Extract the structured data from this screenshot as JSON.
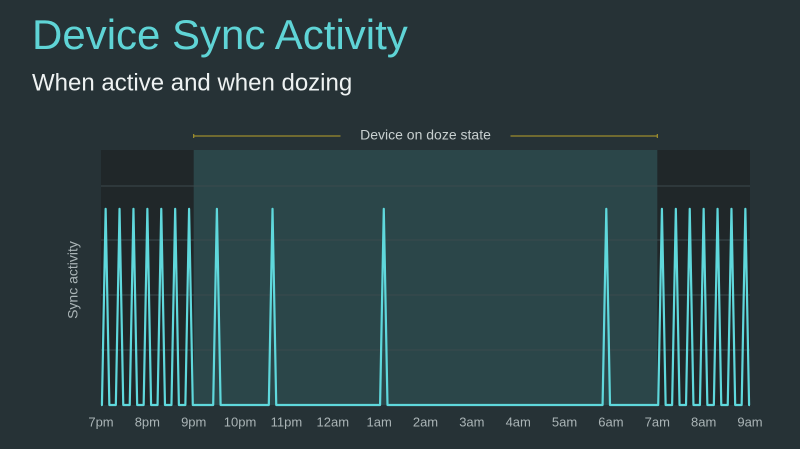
{
  "chart_data": {
    "type": "line",
    "title": "Device Sync Activity",
    "subtitle": "When active and when dozing",
    "y_label": "Sync activity",
    "annotation": {
      "text": "Device on doze state",
      "x_range": [
        2,
        12
      ],
      "color": "#b9a32b",
      "fill": "#2b4649"
    },
    "outside_fill": "#202729",
    "color": "#5fd8dc",
    "xlim": [
      0,
      14
    ],
    "ylim": [
      0,
      1.3
    ],
    "xticks": [
      {
        "value": 0,
        "label": "7pm"
      },
      {
        "value": 1,
        "label": "8pm"
      },
      {
        "value": 2,
        "label": "9pm"
      },
      {
        "value": 3,
        "label": "10pm"
      },
      {
        "value": 4,
        "label": "11pm"
      },
      {
        "value": 5,
        "label": "12am"
      },
      {
        "value": 6,
        "label": "1am"
      },
      {
        "value": 7,
        "label": "2am"
      },
      {
        "value": 8,
        "label": "3am"
      },
      {
        "value": 9,
        "label": "4am"
      },
      {
        "value": 10,
        "label": "5am"
      },
      {
        "value": 11,
        "label": "6am"
      },
      {
        "value": 12,
        "label": "7am"
      },
      {
        "value": 13,
        "label": "8am"
      },
      {
        "value": 14,
        "label": "9am"
      }
    ],
    "x": [
      0,
      0.02,
      0.1,
      0.18,
      0.32,
      0.4,
      0.48,
      0.62,
      0.7,
      0.78,
      0.92,
      1.0,
      1.08,
      1.22,
      1.3,
      1.38,
      1.52,
      1.6,
      1.68,
      1.82,
      1.9,
      1.98,
      2.42,
      2.5,
      2.58,
      3.62,
      3.7,
      3.78,
      6.02,
      6.1,
      6.18,
      10.82,
      10.9,
      10.98,
      12.02,
      12.1,
      12.18,
      12.32,
      12.4,
      12.48,
      12.62,
      12.7,
      12.78,
      12.92,
      13.0,
      13.08,
      13.22,
      13.3,
      13.38,
      13.52,
      13.6,
      13.68,
      13.82,
      13.9,
      13.98,
      14
    ],
    "values": [
      0,
      0,
      1,
      0,
      0,
      1,
      0,
      0,
      1,
      0,
      0,
      1,
      0,
      0,
      1,
      0,
      0,
      1,
      0,
      0,
      1,
      0,
      0,
      1,
      0,
      0,
      1,
      0,
      0,
      1,
      0,
      0,
      1,
      0,
      0,
      1,
      0,
      0,
      1,
      0,
      0,
      1,
      0,
      0,
      1,
      0,
      0,
      1,
      0,
      0,
      1,
      0,
      0,
      1,
      0,
      0
    ]
  }
}
